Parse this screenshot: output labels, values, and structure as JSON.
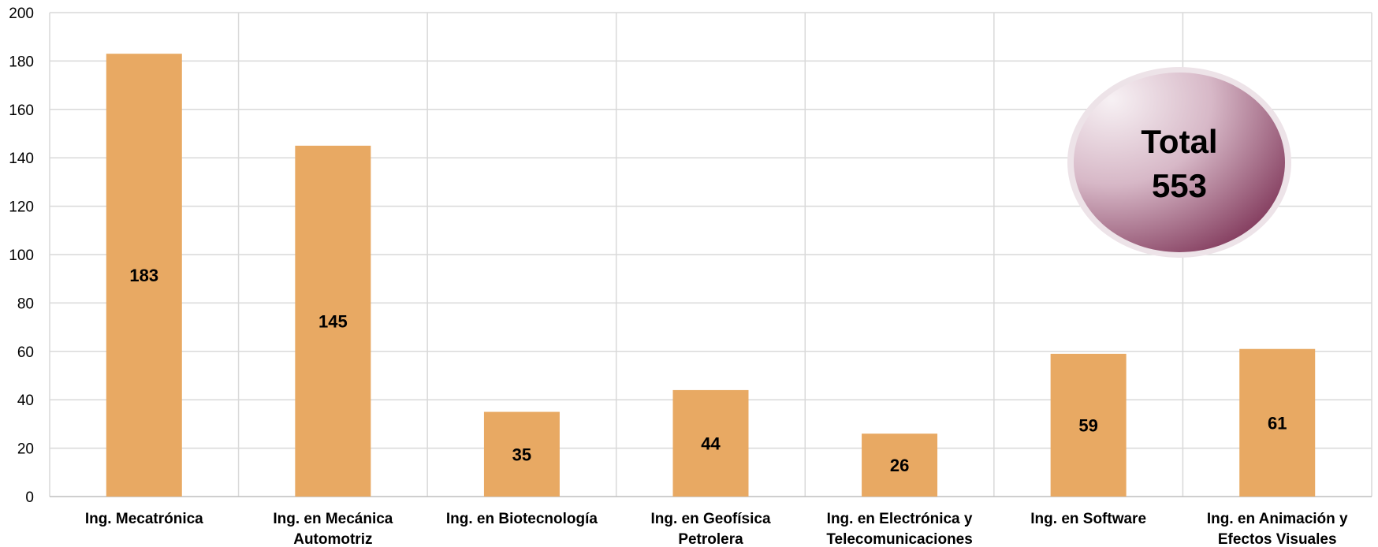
{
  "chart_data": {
    "type": "bar",
    "title": "",
    "xlabel": "",
    "ylabel": "",
    "ylim": [
      0,
      200
    ],
    "yticks": [
      0,
      20,
      40,
      60,
      80,
      100,
      120,
      140,
      160,
      180,
      200
    ],
    "grid": true,
    "legend": "none",
    "categories": [
      "Ing. Mecatrónica",
      "Ing. en Mecánica Automotriz",
      "Ing. en Biotecnología",
      "Ing. en Geofísica Petrolera",
      "Ing. en Electrónica y Telecomunicaciones",
      "Ing. en Software",
      "Ing. en Animación y Efectos Visuales"
    ],
    "values": [
      183,
      145,
      35,
      44,
      26,
      59,
      61
    ],
    "bar_color": "#e8a963",
    "annotation": {
      "label": "Total",
      "value": "553",
      "placement": "top-right",
      "colors": [
        "#f5eef1",
        "#7a2e52"
      ]
    }
  }
}
